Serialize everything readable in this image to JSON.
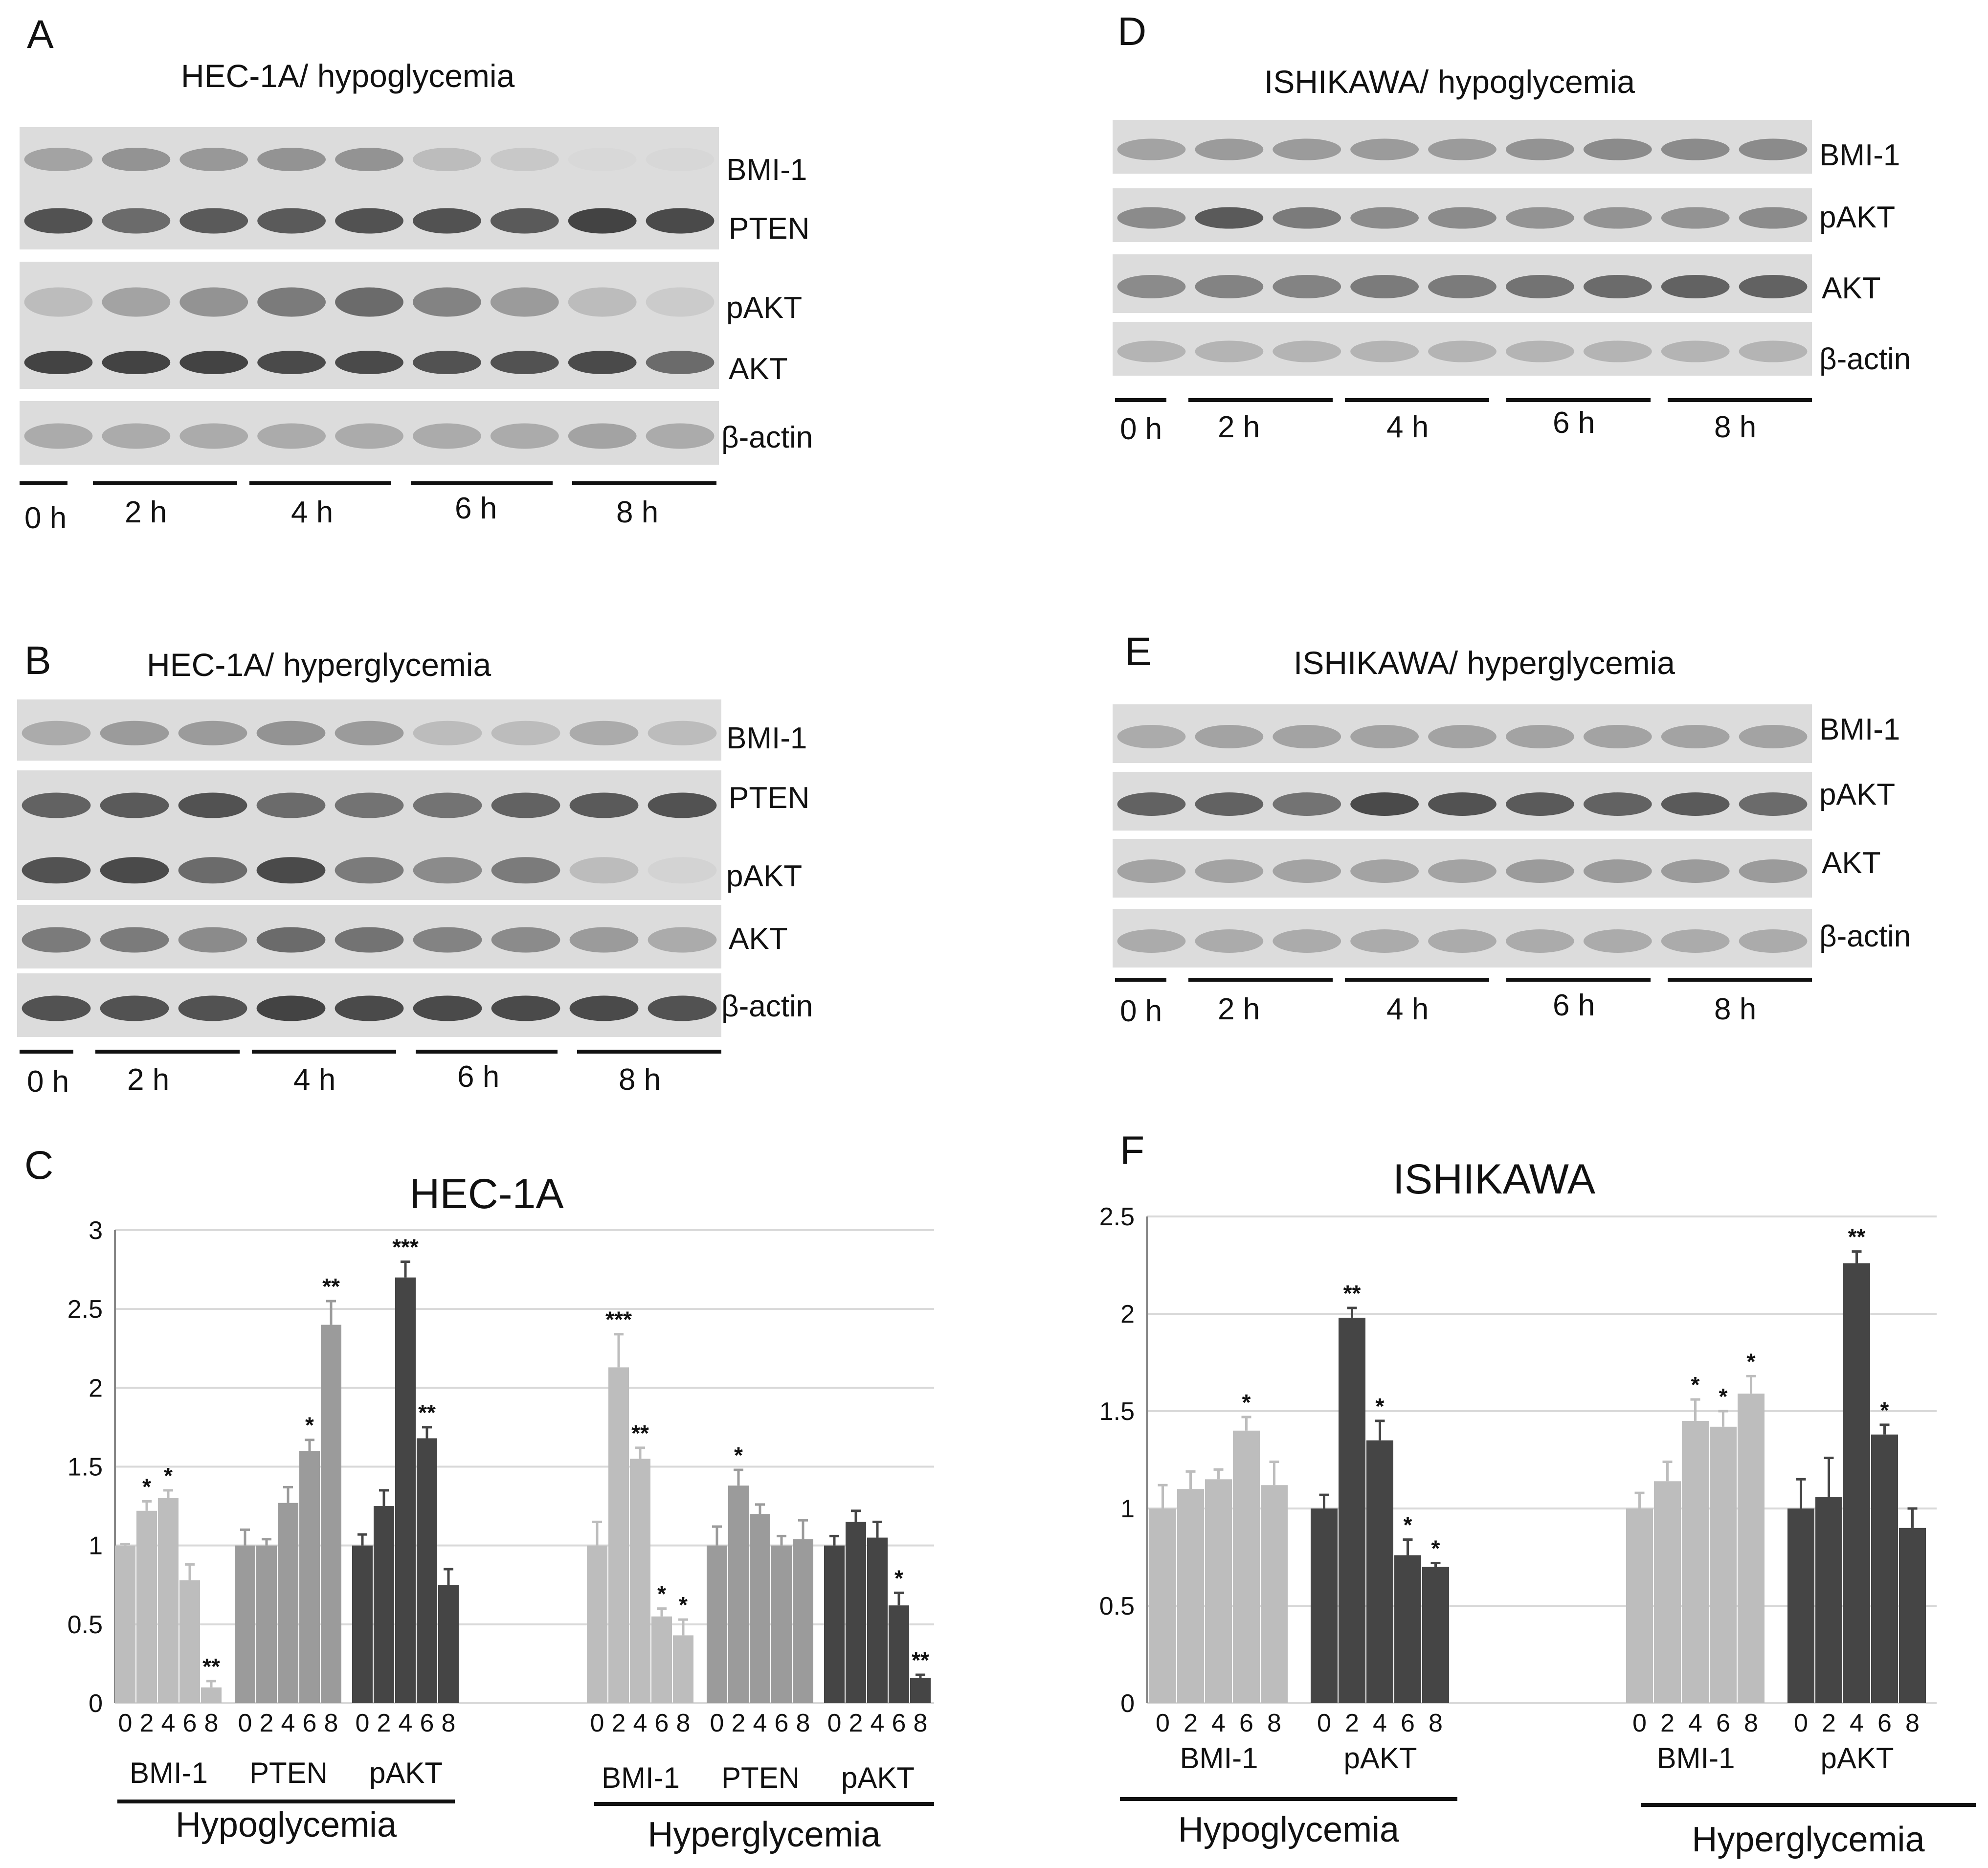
{
  "colors": {
    "light": "#bdbdbd",
    "mid": "#9b9b9b",
    "dark": "#454545",
    "grid": "#d9d9d9",
    "axis": "#888888",
    "membrane": "#dcdcdc",
    "band": "#3a3a3a"
  },
  "panels": {
    "A": {
      "letter": "A",
      "title": "HEC-1A/ hypoglycemia",
      "rows": [
        "BMI-1",
        "PTEN",
        "pAKT",
        "AKT",
        "β-actin"
      ],
      "time_labels": [
        "0 h",
        "2 h",
        "4 h",
        "6 h",
        "8 h"
      ],
      "band_intensity": [
        [
          0.35,
          0.45,
          0.42,
          0.45,
          0.45,
          0.2,
          0.12,
          0.02,
          0.03
        ],
        [
          0.85,
          0.7,
          0.8,
          0.8,
          0.85,
          0.85,
          0.8,
          0.95,
          0.9
        ],
        [
          0.2,
          0.35,
          0.45,
          0.6,
          0.7,
          0.55,
          0.4,
          0.2,
          0.1
        ],
        [
          0.95,
          0.95,
          0.95,
          0.9,
          0.9,
          0.85,
          0.85,
          0.9,
          0.7
        ],
        [
          0.3,
          0.3,
          0.3,
          0.3,
          0.3,
          0.3,
          0.3,
          0.35,
          0.3
        ]
      ]
    },
    "B": {
      "letter": "B",
      "title": "HEC-1A/ hyperglycemia",
      "rows": [
        "BMI-1",
        "PTEN",
        "pAKT",
        "AKT",
        "β-actin"
      ],
      "time_labels": [
        "0 h",
        "2 h",
        "4 h",
        "6 h",
        "8 h"
      ],
      "band_intensity": [
        [
          0.3,
          0.4,
          0.4,
          0.45,
          0.4,
          0.2,
          0.2,
          0.3,
          0.2
        ],
        [
          0.75,
          0.8,
          0.85,
          0.7,
          0.65,
          0.65,
          0.75,
          0.8,
          0.85
        ],
        [
          0.85,
          0.9,
          0.7,
          0.9,
          0.6,
          0.5,
          0.6,
          0.2,
          0.05
        ],
        [
          0.6,
          0.6,
          0.5,
          0.7,
          0.65,
          0.55,
          0.5,
          0.4,
          0.3
        ],
        [
          0.85,
          0.85,
          0.85,
          0.95,
          0.9,
          0.9,
          0.9,
          0.9,
          0.85
        ]
      ]
    },
    "D": {
      "letter": "D",
      "title": "ISHIKAWA/ hypoglycemia",
      "rows": [
        "BMI-1",
        "pAKT",
        "AKT",
        "β-actin"
      ],
      "time_labels": [
        "0 h",
        "2 h",
        "4 h",
        "6 h",
        "8 h"
      ],
      "band_intensity": [
        [
          0.35,
          0.4,
          0.4,
          0.4,
          0.4,
          0.45,
          0.5,
          0.5,
          0.5
        ],
        [
          0.5,
          0.8,
          0.6,
          0.5,
          0.5,
          0.45,
          0.45,
          0.45,
          0.5
        ],
        [
          0.5,
          0.55,
          0.55,
          0.6,
          0.6,
          0.65,
          0.7,
          0.75,
          0.75
        ],
        [
          0.25,
          0.25,
          0.25,
          0.25,
          0.25,
          0.25,
          0.25,
          0.25,
          0.25
        ]
      ]
    },
    "E": {
      "letter": "E",
      "title": "ISHIKAWA/ hyperglycemia",
      "rows": [
        "BMI-1",
        "pAKT",
        "AKT",
        "β-actin"
      ],
      "time_labels": [
        "0 h",
        "2 h",
        "4 h",
        "6 h",
        "8 h"
      ],
      "band_intensity": [
        [
          0.3,
          0.35,
          0.35,
          0.35,
          0.35,
          0.35,
          0.35,
          0.35,
          0.35
        ],
        [
          0.75,
          0.75,
          0.65,
          0.9,
          0.85,
          0.8,
          0.75,
          0.8,
          0.7
        ],
        [
          0.35,
          0.35,
          0.35,
          0.35,
          0.35,
          0.4,
          0.4,
          0.4,
          0.4
        ],
        [
          0.3,
          0.3,
          0.3,
          0.3,
          0.3,
          0.3,
          0.3,
          0.3,
          0.3
        ]
      ]
    }
  },
  "chart_data": [
    {
      "panel": "C",
      "type": "bar",
      "title": "HEC-1A",
      "ylim": [
        0,
        3
      ],
      "yticks": [
        "0",
        "0.5",
        "1",
        "1.5",
        "2",
        "2.5",
        "3"
      ],
      "grid": true,
      "xticks": [
        "0",
        "2",
        "4",
        "6",
        "8"
      ],
      "series": [
        {
          "condition": "Hypoglycemia",
          "protein": "BMI-1",
          "color": "light",
          "values": [
            1.0,
            1.22,
            1.3,
            0.78,
            0.1
          ],
          "errors": [
            0.01,
            0.06,
            0.05,
            0.1,
            0.04
          ],
          "stars": [
            "",
            "*",
            "*",
            "",
            "**"
          ]
        },
        {
          "condition": "Hypoglycemia",
          "protein": "PTEN",
          "color": "mid",
          "values": [
            1.0,
            1.0,
            1.27,
            1.6,
            2.4
          ],
          "errors": [
            0.1,
            0.04,
            0.1,
            0.07,
            0.15
          ],
          "stars": [
            "",
            "",
            "",
            "*",
            "**"
          ]
        },
        {
          "condition": "Hypoglycemia",
          "protein": "pAKT",
          "color": "dark",
          "values": [
            1.0,
            1.25,
            2.7,
            1.68,
            0.75
          ],
          "errors": [
            0.07,
            0.1,
            0.1,
            0.07,
            0.1
          ],
          "stars": [
            "",
            "",
            "***",
            "**",
            ""
          ]
        },
        {
          "condition": "Hyperglycemia",
          "protein": "BMI-1",
          "color": "light",
          "values": [
            1.0,
            2.13,
            1.55,
            0.55,
            0.43
          ],
          "errors": [
            0.15,
            0.21,
            0.07,
            0.05,
            0.1
          ],
          "stars": [
            "",
            "***",
            "**",
            "*",
            "*"
          ]
        },
        {
          "condition": "Hyperglycemia",
          "protein": "PTEN",
          "color": "mid",
          "values": [
            1.0,
            1.38,
            1.2,
            1.0,
            1.04
          ],
          "errors": [
            0.12,
            0.1,
            0.06,
            0.06,
            0.12
          ],
          "stars": [
            "",
            "*",
            "",
            "",
            ""
          ]
        },
        {
          "condition": "Hyperglycemia",
          "protein": "pAKT",
          "color": "dark",
          "values": [
            1.0,
            1.15,
            1.05,
            0.62,
            0.16
          ],
          "errors": [
            0.06,
            0.07,
            0.1,
            0.08,
            0.02
          ],
          "stars": [
            "",
            "",
            "",
            "*",
            "**"
          ]
        }
      ],
      "conditions": [
        "Hypoglycemia",
        "Hyperglycemia"
      ]
    },
    {
      "panel": "F",
      "type": "bar",
      "title": "ISHIKAWA",
      "ylim": [
        0,
        2.5
      ],
      "yticks": [
        "0",
        "0.5",
        "1",
        "1.5",
        "2",
        "2.5"
      ],
      "grid": true,
      "xticks": [
        "0",
        "2",
        "4",
        "6",
        "8"
      ],
      "series": [
        {
          "condition": "Hypoglycemia",
          "protein": "BMI-1",
          "color": "light",
          "values": [
            1.0,
            1.1,
            1.15,
            1.4,
            1.12
          ],
          "errors": [
            0.12,
            0.09,
            0.05,
            0.07,
            0.12
          ],
          "stars": [
            "",
            "",
            "",
            "*",
            ""
          ]
        },
        {
          "condition": "Hypoglycemia",
          "protein": "pAKT",
          "color": "dark",
          "values": [
            1.0,
            1.98,
            1.35,
            0.76,
            0.7
          ],
          "errors": [
            0.07,
            0.05,
            0.1,
            0.08,
            0.02
          ],
          "stars": [
            "",
            "**",
            "*",
            "*",
            "*"
          ]
        },
        {
          "condition": "Hyperglycemia",
          "protein": "BMI-1",
          "color": "light",
          "values": [
            1.0,
            1.14,
            1.45,
            1.42,
            1.59
          ],
          "errors": [
            0.08,
            0.1,
            0.11,
            0.08,
            0.09
          ],
          "stars": [
            "",
            "",
            "*",
            "*",
            "*"
          ]
        },
        {
          "condition": "Hyperglycemia",
          "protein": "pAKT",
          "color": "dark",
          "values": [
            1.0,
            1.06,
            2.26,
            1.38,
            0.9
          ],
          "errors": [
            0.15,
            0.2,
            0.06,
            0.05,
            0.1
          ],
          "stars": [
            "",
            "",
            "**",
            "*",
            ""
          ]
        }
      ],
      "conditions": [
        "Hypoglycemia",
        "Hyperglycemia"
      ]
    }
  ]
}
